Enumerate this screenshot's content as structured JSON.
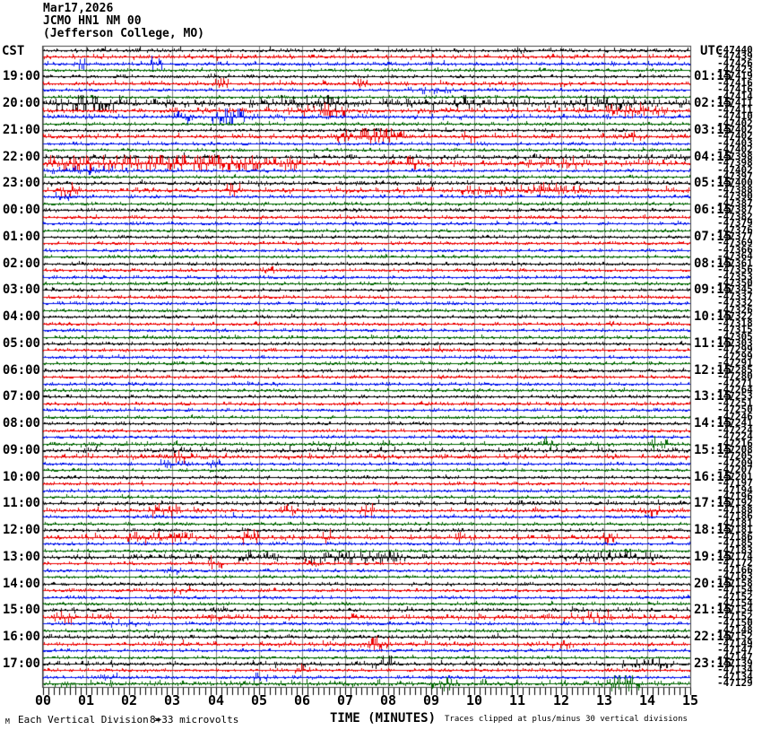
{
  "header": {
    "date": "Mar17,2026",
    "station": "JCMO HN1 NM 00",
    "location": "(Jefferson College, MO)"
  },
  "axes": {
    "left_label": "CST",
    "right_label": "UTC",
    "x_label": "TIME (MINUTES)",
    "x_ticks": [
      "00",
      "01",
      "02",
      "03",
      "04",
      "05",
      "06",
      "07",
      "08",
      "09",
      "10",
      "11",
      "12",
      "13",
      "14",
      "15"
    ]
  },
  "footer": {
    "watermark": "M",
    "scale_label": "Each Vertical Division =",
    "scale_value": "8+33 microvolts",
    "clip_note": "Traces clipped at plus/minus 30 vertical divisions"
  },
  "chart_data": {
    "type": "line",
    "variant": "helicorder-seismogram",
    "title": "Mar17,2026 JCMO HN1 NM 00 (Jefferson College, MO)",
    "xlabel": "TIME (MINUTES)",
    "x_range": [
      0,
      15
    ],
    "minutes_per_row": 15,
    "rows": 96,
    "grid": true,
    "grid_color": "#808080",
    "color_cycle": [
      "#000000",
      "#ee0000",
      "#0011ee",
      "#006600"
    ],
    "left_axis": {
      "label": "CST",
      "hour_labels": [
        "19:00",
        "20:00",
        "21:00",
        "22:00",
        "23:00",
        "00:00",
        "01:00",
        "02:00",
        "03:00",
        "04:00",
        "05:00",
        "06:00",
        "07:00",
        "08:00",
        "09:00",
        "10:00",
        "11:00",
        "12:00",
        "13:00",
        "14:00",
        "15:00",
        "16:00",
        "17:00"
      ]
    },
    "right_axis": {
      "label": "UTC",
      "hour_labels": [
        "01:15",
        "02:15",
        "03:15",
        "04:15",
        "05:15",
        "06:15",
        "07:15",
        "08:15",
        "09:15",
        "10:15",
        "11:15",
        "12:15",
        "13:15",
        "14:15",
        "15:15",
        "16:15",
        "17:15",
        "18:15",
        "19:15",
        "20:15",
        "21:15",
        "22:15",
        "23:15"
      ]
    },
    "trace_offsets": [
      "-47440",
      "-47439",
      "-47426",
      "-47423",
      "-47419",
      "-47416",
      "-47416",
      "-47414",
      "-47411",
      "-47411",
      "-47410",
      "-47402",
      "-47402",
      "-47402",
      "-47403",
      "-47402",
      "-47398",
      "-47398",
      "-47402",
      "-47397",
      "-47400",
      "-47388",
      "-47390",
      "-47387",
      "-47387",
      "-47382",
      "-47379",
      "-47376",
      "-47377",
      "-47369",
      "-47366",
      "-47364",
      "-47361",
      "-47356",
      "-47353",
      "-47350",
      "-47345",
      "-47337",
      "-47332",
      "-47326",
      "-47322",
      "-47318",
      "-47315",
      "-47305",
      "-47303",
      "-47299",
      "-47299",
      "-47291",
      "-47285",
      "-47280",
      "-47271",
      "-47264",
      "-47253",
      "-47251",
      "-47250",
      "-47246",
      "-47241",
      "-47224",
      "-47224",
      "-47216",
      "-47208",
      "-47205",
      "-47209",
      "-47207",
      "-47201",
      "-47197",
      "-47194",
      "-47196",
      "-47192",
      "-47188",
      "-47186",
      "-47181",
      "-47181",
      "-47186",
      "-47185",
      "-47183",
      "-47174",
      "-47172",
      "-47166",
      "-47163",
      "-47158",
      "-47154",
      "-47152",
      "-47154",
      "-47154",
      "-47152",
      "-47150",
      "-47148",
      "-47152",
      "-47149",
      "-47147",
      "-47147",
      "-47139",
      "-47134",
      "-47134",
      "-47129"
    ],
    "noise": {
      "default_amp": 0.75,
      "amp_overrides": {
        "0": 1.0,
        "1": 1.1,
        "2": 1.0,
        "5": 1.0,
        "8": 1.9,
        "9": 1.3,
        "10": 1.2,
        "13": 1.1,
        "16": 1.2,
        "17": 1.5,
        "20": 1.0,
        "21": 1.2,
        "24": 0.9,
        "59": 1.0,
        "60": 1.2,
        "61": 1.1,
        "68": 1.1,
        "69": 1.1,
        "73": 1.2,
        "76": 1.2,
        "84": 1.0,
        "85": 1.3,
        "88": 1.0,
        "89": 1.1,
        "92": 1.1,
        "95": 1.4
      },
      "bursts": [
        [
          2,
          0.7,
          1.1,
          2.5
        ],
        [
          2,
          2.4,
          2.8,
          3.0
        ],
        [
          5,
          3.9,
          4.3,
          2.0
        ],
        [
          5,
          7.2,
          7.6,
          1.6
        ],
        [
          6,
          8.4,
          9.6,
          1.2
        ],
        [
          8,
          0.2,
          1.8,
          3.2
        ],
        [
          8,
          5.5,
          7.0,
          1.5
        ],
        [
          8,
          9.0,
          10.0,
          1.4
        ],
        [
          8,
          12.5,
          14.0,
          1.4
        ],
        [
          9,
          5.8,
          7.0,
          2.4
        ],
        [
          9,
          13.0,
          14.5,
          1.8
        ],
        [
          10,
          2.9,
          3.6,
          1.5
        ],
        [
          10,
          3.9,
          4.7,
          3.4
        ],
        [
          13,
          6.6,
          8.4,
          2.4
        ],
        [
          13,
          9.7,
          10.1,
          2.4
        ],
        [
          13,
          13.4,
          14.0,
          1.5
        ],
        [
          17,
          0.0,
          6.0,
          3.0
        ],
        [
          17,
          8.4,
          8.8,
          2.4
        ],
        [
          17,
          11.0,
          12.6,
          1.4
        ],
        [
          18,
          0.2,
          2.0,
          1.4
        ],
        [
          21,
          0.3,
          0.9,
          2.4
        ],
        [
          21,
          4.2,
          4.6,
          2.0
        ],
        [
          21,
          9.5,
          13.0,
          1.3
        ],
        [
          22,
          0.2,
          0.7,
          1.8
        ],
        [
          33,
          5.0,
          5.4,
          1.4
        ],
        [
          45,
          9.0,
          9.4,
          1.2
        ],
        [
          59,
          11.4,
          11.9,
          2.0
        ],
        [
          59,
          14.0,
          14.5,
          2.4
        ],
        [
          61,
          3.0,
          3.5,
          2.4
        ],
        [
          62,
          2.7,
          3.4,
          1.4
        ],
        [
          62,
          3.8,
          4.1,
          1.8
        ],
        [
          69,
          2.4,
          3.2,
          2.2
        ],
        [
          69,
          5.4,
          5.9,
          1.8
        ],
        [
          69,
          7.3,
          7.7,
          2.0
        ],
        [
          69,
          13.8,
          14.3,
          2.0
        ],
        [
          70,
          4.3,
          4.7,
          1.5
        ],
        [
          73,
          1.9,
          3.5,
          2.0
        ],
        [
          73,
          4.6,
          5.0,
          2.4
        ],
        [
          73,
          6.4,
          6.8,
          1.6
        ],
        [
          73,
          9.5,
          9.8,
          1.8
        ],
        [
          73,
          12.9,
          13.3,
          1.6
        ],
        [
          76,
          4.5,
          5.5,
          1.5
        ],
        [
          76,
          5.9,
          8.3,
          1.7
        ],
        [
          76,
          12.0,
          14.2,
          1.5
        ],
        [
          77,
          3.8,
          4.2,
          2.4
        ],
        [
          77,
          6.0,
          6.4,
          1.5
        ],
        [
          78,
          2.8,
          3.2,
          1.5
        ],
        [
          81,
          3.0,
          3.4,
          1.5
        ],
        [
          85,
          0.2,
          0.8,
          1.7
        ],
        [
          85,
          12.5,
          13.2,
          2.2
        ],
        [
          86,
          1.5,
          2.5,
          1.3
        ],
        [
          89,
          7.5,
          8.1,
          2.4
        ],
        [
          89,
          11.8,
          12.3,
          1.4
        ],
        [
          92,
          7.6,
          8.2,
          1.8
        ],
        [
          92,
          13.4,
          14.6,
          1.5
        ],
        [
          93,
          5.8,
          6.2,
          1.8
        ],
        [
          94,
          1.3,
          1.9,
          1.5
        ],
        [
          94,
          4.8,
          5.4,
          1.4
        ],
        [
          95,
          9.0,
          9.5,
          1.7
        ],
        [
          95,
          13.0,
          13.9,
          2.6
        ]
      ]
    }
  }
}
